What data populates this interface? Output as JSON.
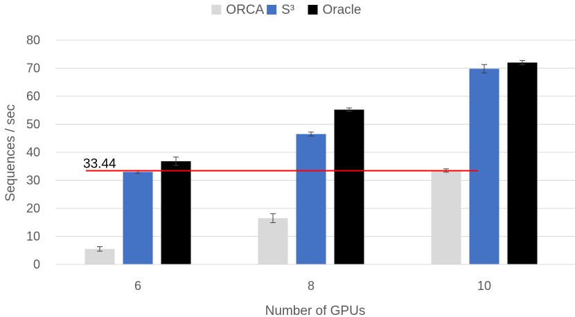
{
  "chart_data": {
    "type": "bar",
    "title": "",
    "xlabel": "Number of GPUs",
    "ylabel": "Sequences / sec",
    "categories": [
      "6",
      "8",
      "10"
    ],
    "ylim": [
      0,
      80
    ],
    "yticks": [
      0,
      10,
      20,
      30,
      40,
      50,
      60,
      70,
      80
    ],
    "grid": true,
    "legend_position": "top",
    "series": [
      {
        "name": "ORCA",
        "color": "#d9d9d9",
        "values": [
          5.5,
          16.5,
          33.5
        ],
        "errors": [
          0.8,
          1.6,
          0.6
        ]
      },
      {
        "name": "S³",
        "color": "#4472c4",
        "values": [
          33.0,
          46.5,
          69.8
        ],
        "errors": [
          0.5,
          0.7,
          1.5
        ]
      },
      {
        "name": "Oracle",
        "color": "#000000",
        "values": [
          36.8,
          55.2,
          72.0
        ],
        "errors": [
          1.5,
          0.6,
          0.7
        ]
      }
    ],
    "annotations": [
      {
        "type": "hline",
        "value": 33.44,
        "label": "33.44",
        "color": "#ff0000"
      }
    ]
  }
}
